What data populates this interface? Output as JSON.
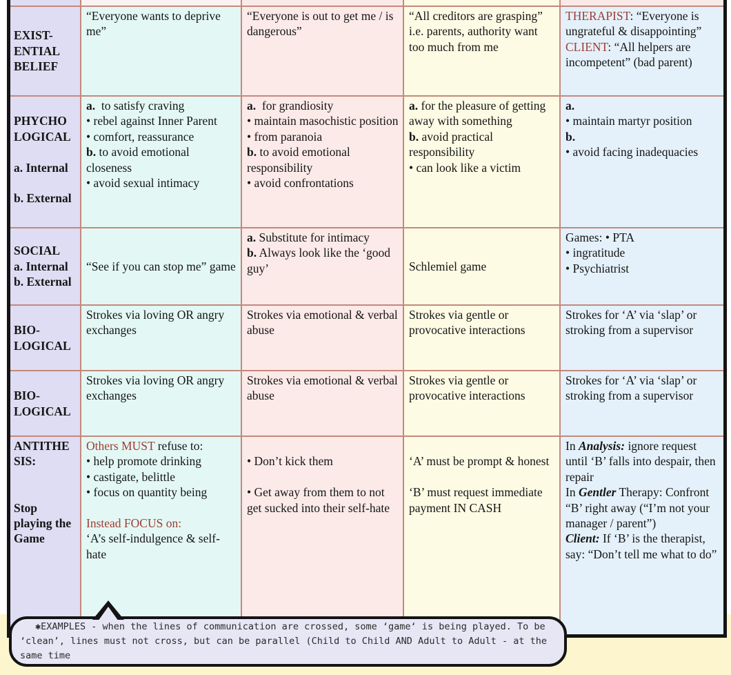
{
  "palette": {
    "header_column_bg": "#DEDDF3",
    "column1_bg": "#E3F8F4",
    "column2_bg": "#FBEAE8",
    "column3_bg": "#FDFBE4",
    "column4_bg": "#E4F1FA",
    "cell_border": "#C4887C",
    "outer_border": "#141414",
    "emphasis_red": "#A03B33",
    "callout_bg": "#E7E6F5",
    "page_bottom_bg": "#FCF5CD"
  },
  "table": {
    "rows": [
      {
        "head": {
          "valign": "middle",
          "lines": [
            "EXIST-",
            "ENTIAL",
            "BELIEF"
          ]
        },
        "cells": [
          {
            "lines": [
              "“Everyone wants to deprive me”"
            ]
          },
          {
            "lines": [
              "“Everyone is out to get me / is dangerous”"
            ]
          },
          {
            "lines": [
              "“All creditors are grasping” i.e. parents, authority want too much from me"
            ]
          },
          {
            "lines": [
              [
                {
                  "t": "THERAPIST",
                  "r": true
                },
                {
                  "t": ": “Everyone is ungrateful & disappointing”"
                }
              ],
              [
                {
                  "t": "CLIENT",
                  "r": true
                },
                {
                  "t": ": “All helpers are incompetent” (bad parent)"
                }
              ]
            ]
          }
        ]
      },
      {
        "head": {
          "valign": "top",
          "lines": [
            "",
            "PHYCHO",
            "LOGICAL",
            "",
            "a. Internal",
            "",
            "b. External"
          ]
        },
        "cells": [
          {
            "lines": [
              [
                {
                  "t": "a.",
                  "b": true
                },
                {
                  "t": "  to satisfy craving"
                }
              ],
              "• rebel against Inner Parent",
              "• comfort, reassurance",
              [
                {
                  "t": "b.",
                  "b": true
                },
                {
                  "t": " to avoid emotional closeness"
                }
              ],
              "• avoid sexual intimacy"
            ]
          },
          {
            "lines": [
              [
                {
                  "t": "a.",
                  "b": true
                },
                {
                  "t": "  for grandiosity"
                }
              ],
              "• maintain masochistic position",
              "• from paranoia",
              [
                {
                  "t": "b.",
                  "b": true
                },
                {
                  "t": " to avoid emotional responsibility"
                }
              ],
              "• avoid confrontations"
            ]
          },
          {
            "lines": [
              [
                {
                  "t": "a.",
                  "b": true
                },
                {
                  "t": " for the pleasure of getting away with something"
                }
              ],
              [
                {
                  "t": "b.",
                  "b": true
                },
                {
                  "t": " avoid practical responsibility"
                }
              ],
              "• can look like a victim"
            ]
          },
          {
            "lines": [
              [
                {
                  "t": "a.",
                  "b": true
                }
              ],
              "• maintain martyr position",
              [
                {
                  "t": "b.",
                  "b": true
                }
              ],
              "• avoid facing inadequacies"
            ]
          }
        ]
      },
      {
        "head": {
          "valign": "middle",
          "lines": [
            "SOCIAL",
            "a. Internal",
            "b. External"
          ]
        },
        "cells": [
          {
            "valign": "middle",
            "lines": [
              "“See if you can stop me” game"
            ]
          },
          {
            "lines": [
              [
                {
                  "t": "a.",
                  "b": true
                },
                {
                  "t": " Substitute for intimacy"
                }
              ],
              [
                {
                  "t": "b.",
                  "b": true
                },
                {
                  "t": " Always look like the ‘good guy’"
                }
              ]
            ]
          },
          {
            "valign": "middle",
            "lines": [
              "Schlemiel game"
            ]
          },
          {
            "lines": [
              "Games: • PTA",
              "• ingratitude",
              "• Psychiatrist"
            ]
          }
        ]
      },
      {
        "head": {
          "valign": "middle",
          "lines": [
            "BIO-",
            "LOGICAL"
          ]
        },
        "cells": [
          {
            "lines": [
              "Strokes via loving OR angry exchanges"
            ]
          },
          {
            "lines": [
              "Strokes via emotional & verbal abuse"
            ]
          },
          {
            "lines": [
              "Strokes via gentle or provocative interactions"
            ]
          },
          {
            "lines": [
              "Strokes for ‘A’ via ‘slap’ or stroking from a supervisor"
            ]
          }
        ]
      },
      {
        "head": {
          "valign": "middle",
          "lines": [
            "BIO-",
            "LOGICAL"
          ]
        },
        "cells": [
          {
            "lines": [
              "Strokes via loving OR angry exchanges"
            ]
          },
          {
            "lines": [
              "Strokes via emotional & verbal abuse"
            ]
          },
          {
            "lines": [
              "Strokes via gentle or provocative interactions"
            ]
          },
          {
            "lines": [
              "Strokes for ‘A’ via ‘slap’ or stroking from a supervisor"
            ]
          }
        ]
      },
      {
        "head": {
          "valign": "top",
          "lines": [
            "ANTITHE",
            "SIS:",
            "",
            "",
            "Stop",
            "playing the",
            "Game"
          ]
        },
        "cells": [
          {
            "lines": [
              [
                {
                  "t": "Others MUST",
                  "r": true
                },
                {
                  "t": " refuse to:"
                }
              ],
              "• help promote drinking",
              "• castigate, belittle",
              "• focus on quantity being",
              "",
              [
                {
                  "t": "Instead FOCUS on:",
                  "r": true
                }
              ],
              "‘A’s self-indulgence & self-hate"
            ]
          },
          {
            "lines": [
              "",
              "• Don’t kick them",
              "",
              "• Get away from them to not get sucked into their self-hate"
            ]
          },
          {
            "lines": [
              "",
              "‘A’ must be prompt & honest",
              "",
              "‘B’ must request immediate payment IN CASH"
            ]
          },
          {
            "lines": [
              [
                {
                  "t": "In "
                },
                {
                  "t": "Analysis:",
                  "bi": true
                },
                {
                  "t": " ignore request until ‘B’ falls into despair, then repair"
                }
              ],
              [
                {
                  "t": "In "
                },
                {
                  "t": "Gentler",
                  "bi": true
                },
                {
                  "t": " Therapy: Confront “B’ right away (“I’m not your manager / parent”)"
                }
              ],
              [
                {
                  "t": "Client:",
                  "bi": true
                },
                {
                  "t": " If ‘B’ is the therapist, say: “Don’t tell me what to do”"
                }
              ]
            ]
          }
        ]
      }
    ]
  },
  "callout": {
    "text": "✱EXAMPLES - when the lines of communication are crossed,  some ‘game‘ is being played. To be ‘clean’, lines must not cross, but can be parallel (Child to Child AND Adult to Adult - at the same time"
  }
}
